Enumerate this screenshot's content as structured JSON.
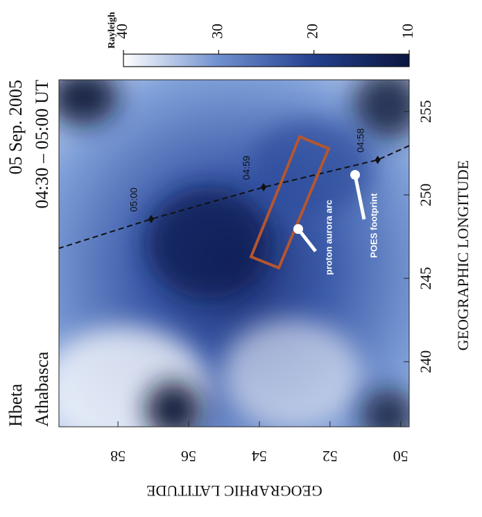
{
  "chart_data": {
    "type": "map",
    "title_lines": [
      "Hbeta",
      "Athabasca"
    ],
    "subtitle_lines": [
      "05 Sep. 2005",
      "04:30 – 05:00 UT"
    ],
    "xlabel": "GEOGRAPHIC LONGITUDE",
    "ylabel": "GEOGRAPHIC LATITUDE",
    "xlim": [
      236.1,
      256.9
    ],
    "ylim": [
      49.76,
      59.67
    ],
    "xticks": [
      240,
      245,
      250,
      255
    ],
    "yticks": [
      50,
      52,
      54,
      56,
      58
    ],
    "colorbar": {
      "label": "Rayleigh",
      "lim": [
        10,
        40
      ],
      "ticks": [
        10,
        20,
        30,
        40
      ],
      "colors": [
        "#0b1540",
        "#24408e",
        "#6f90cf",
        "#ffffff"
      ]
    },
    "track": {
      "name": "POES footprint",
      "color": "#111111",
      "x": [
        252.95,
        252.1,
        250.46,
        248.55,
        246.8
      ],
      "y": [
        49.76,
        50.65,
        53.88,
        57.06,
        59.67
      ],
      "times": [
        null,
        "04:58",
        "04:59",
        "05:00",
        null
      ]
    },
    "annotations": [
      "proton aurora arc",
      "POES footprint"
    ]
  }
}
